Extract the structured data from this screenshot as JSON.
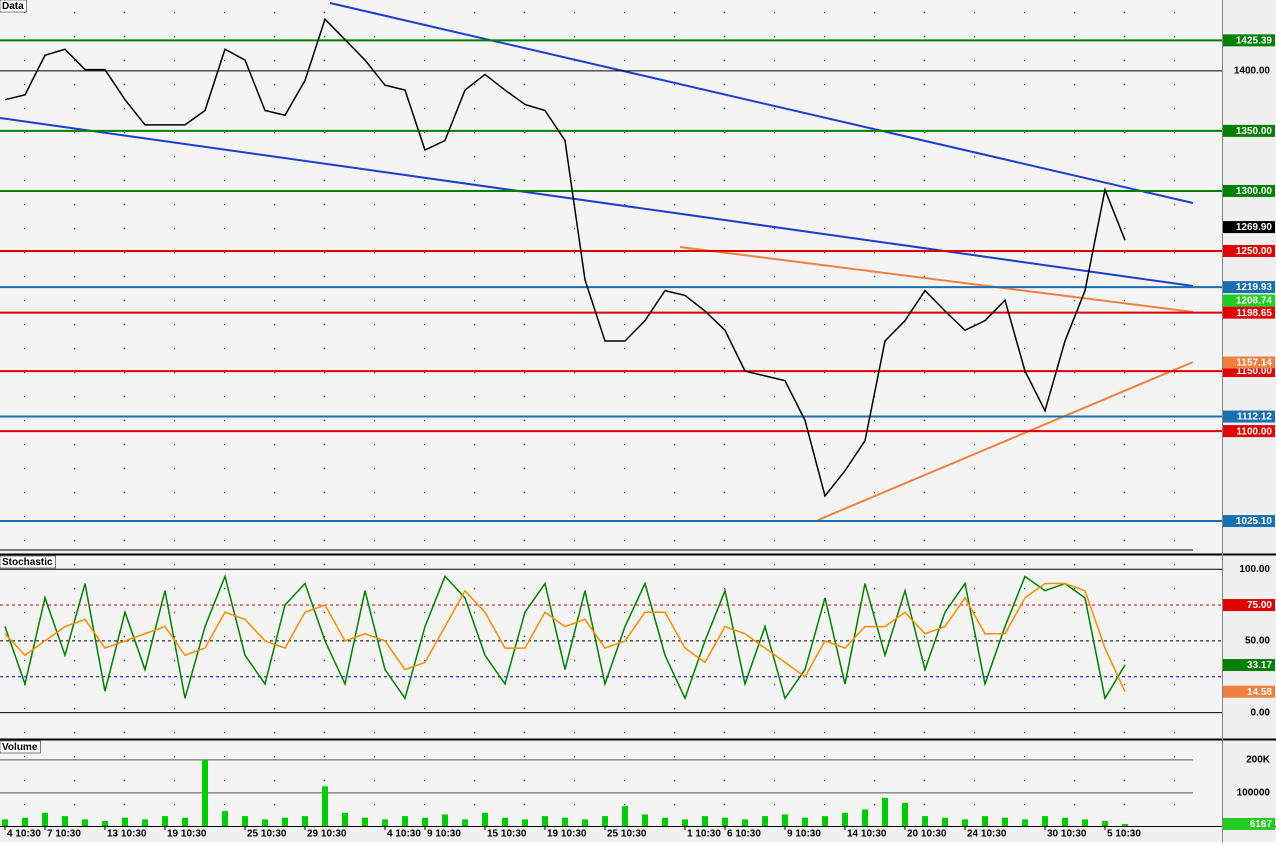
{
  "chart_data": [
    {
      "type": "line",
      "title": "Data",
      "ylim": [
        998.5,
        1459
      ],
      "yticks": [
        {
          "value": 1400,
          "label": "1400.00"
        }
      ],
      "series": [
        {
          "name": null,
          "color": "#000000",
          "values": [
            1376,
            1380,
            1413,
            1418,
            1401,
            1401,
            1376,
            1355,
            1355,
            1355,
            1367,
            1418,
            1409,
            1367,
            1363,
            1392,
            1443,
            1426,
            1409,
            1388,
            1384,
            1334,
            1342,
            1384,
            1397,
            1384,
            1372,
            1367,
            1342,
            1226,
            1175,
            1175,
            1192,
            1217,
            1213,
            1200,
            1184,
            1150,
            1146,
            1142,
            1109,
            1046,
            1067,
            1092,
            1175,
            1192,
            1217,
            1200,
            1184,
            1192,
            1209,
            1150,
            1117,
            1175,
            1217,
            1301,
            1259
          ]
        }
      ],
      "levels": [
        {
          "value": 1425.39,
          "label": "1425.39",
          "color": "#008000"
        },
        {
          "value": 1350,
          "label": "1350.00",
          "color": "#008000"
        },
        {
          "value": 1300,
          "label": "1300.00",
          "color": "#008000"
        },
        {
          "value": 1250,
          "label": "1250.00",
          "color": "#e00000"
        },
        {
          "value": 1219.93,
          "label": "1219.93",
          "color": "#1a6fb0"
        },
        {
          "value": 1198.65,
          "label": "1198.65",
          "color": "#e00000"
        },
        {
          "value": 1150,
          "label": "1150.00",
          "color": "#e00000"
        },
        {
          "value": 1112.12,
          "label": "1112.12",
          "color": "#1a6fb0"
        },
        {
          "value": 1100,
          "label": "1100.00",
          "color": "#e00000"
        },
        {
          "value": 1025.1,
          "label": "1025.10",
          "color": "#1a6fb0"
        }
      ],
      "markers": [
        {
          "value": 1269.9,
          "label": "1269.90",
          "color": "#000000"
        },
        {
          "value": 1208.74,
          "label": "1208.74",
          "color": "#22cc22"
        },
        {
          "value": 1157.14,
          "label": "1157.14",
          "color": "#f08040"
        }
      ]
    },
    {
      "type": "line",
      "title": "Stochastic",
      "ylim": [
        -17.7,
        109.2
      ],
      "dashed": true,
      "yticks": [
        {
          "value": 0,
          "label": "0.00"
        },
        {
          "value": 50,
          "label": "50.00"
        },
        {
          "value": 100,
          "label": "100.00"
        }
      ],
      "series": [
        {
          "name": "%K",
          "color": "#008000",
          "values": [
            60,
            20,
            80,
            40,
            90,
            15,
            70,
            30,
            85,
            10,
            60,
            95,
            40,
            20,
            75,
            90,
            50,
            20,
            85,
            30,
            10,
            60,
            95,
            80,
            40,
            20,
            70,
            90,
            30,
            85,
            20,
            60,
            90,
            40,
            10,
            50,
            85,
            20,
            60,
            10,
            30,
            80,
            20,
            90,
            40,
            85,
            30,
            70,
            90,
            20,
            60,
            95,
            85,
            90,
            80,
            10,
            33.17
          ]
        },
        {
          "name": "%D",
          "color": "#ff8c00",
          "values": [
            55,
            40,
            50,
            60,
            65,
            45,
            50,
            55,
            60,
            40,
            45,
            70,
            65,
            50,
            45,
            70,
            75,
            50,
            55,
            50,
            30,
            35,
            60,
            85,
            70,
            45,
            45,
            70,
            60,
            65,
            45,
            50,
            70,
            70,
            45,
            35,
            60,
            55,
            45,
            35,
            25,
            50,
            45,
            60,
            60,
            70,
            55,
            60,
            80,
            55,
            55,
            80,
            90,
            90,
            85,
            45,
            14.58
          ]
        }
      ],
      "levels": [
        {
          "value": 75,
          "label": "75.00",
          "color": "#e00000"
        },
        {
          "value": 25,
          "color": "#0000cc"
        }
      ],
      "markers": [
        {
          "value": 33.17,
          "label": "33.17",
          "color": "#008000"
        },
        {
          "value": 14.58,
          "label": "14.58",
          "color": "#f08040"
        }
      ]
    },
    {
      "type": "bar",
      "title": "Volume",
      "ylim": [
        0,
        257000
      ],
      "grid": true,
      "color": "#00cc00",
      "yticks": [
        {
          "value": 100000,
          "label": "100000"
        },
        {
          "value": 200000,
          "label": "200K"
        }
      ],
      "categories": [
        "4 10:30",
        null,
        "7 10:30",
        null,
        null,
        "13 10:30",
        null,
        null,
        "19 10:30",
        null,
        null,
        null,
        "25 10:30",
        null,
        null,
        "29 10:30",
        null,
        null,
        null,
        "4 10:30",
        null,
        "9 10:30",
        null,
        null,
        "15 10:30",
        null,
        null,
        "19 10:30",
        null,
        null,
        "25 10:30",
        null,
        null,
        null,
        "1 10:30",
        null,
        "6 10:30",
        null,
        null,
        "9 10:30",
        null,
        null,
        "14 10:30",
        null,
        null,
        "20 10:30",
        null,
        null,
        "24 10:30",
        null,
        null,
        null,
        "30 10:30",
        null,
        null,
        "5 10:30",
        null
      ],
      "values": [
        20000,
        25000,
        40000,
        30000,
        20000,
        15000,
        25000,
        20000,
        30000,
        25000,
        200000,
        45000,
        30000,
        20000,
        25000,
        30000,
        120000,
        40000,
        25000,
        20000,
        30000,
        25000,
        35000,
        20000,
        40000,
        25000,
        20000,
        30000,
        25000,
        20000,
        30000,
        60000,
        35000,
        25000,
        20000,
        30000,
        25000,
        20000,
        30000,
        35000,
        25000,
        30000,
        40000,
        50000,
        85000,
        70000,
        30000,
        25000,
        20000,
        30000,
        25000,
        20000,
        30000,
        25000,
        20000,
        15000,
        6167
      ],
      "markers": [
        {
          "value": 6167,
          "label": "6167",
          "color": "#22cc22"
        }
      ]
    }
  ]
}
